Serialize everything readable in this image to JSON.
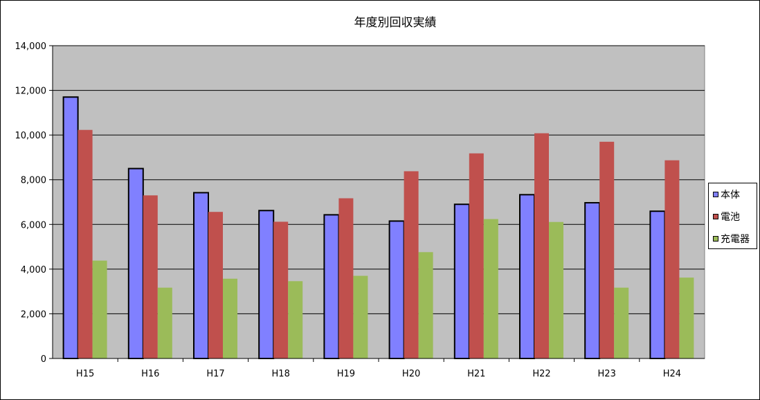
{
  "chart_data": {
    "type": "bar",
    "title": "年度別回収実績",
    "xlabel": "",
    "ylabel": "",
    "categories": [
      "H15",
      "H16",
      "H17",
      "H18",
      "H19",
      "H20",
      "H21",
      "H22",
      "H23",
      "H24"
    ],
    "series": [
      {
        "name": "本体",
        "color": "#8080FF",
        "values": [
          11700,
          8500,
          7420,
          6620,
          6430,
          6150,
          6900,
          7330,
          6970,
          6590
        ]
      },
      {
        "name": "電池",
        "color": "#C0504D",
        "values": [
          10230,
          7300,
          6560,
          6120,
          7170,
          8380,
          9180,
          10080,
          9700,
          8870
        ]
      },
      {
        "name": "充電器",
        "color": "#9BBB59",
        "values": [
          4380,
          3170,
          3570,
          3460,
          3700,
          4760,
          6240,
          6110,
          3170,
          3620
        ]
      }
    ],
    "ylim": [
      0,
      14000
    ],
    "yticks": [
      "0",
      "2,000",
      "4,000",
      "6,000",
      "8,000",
      "10,000",
      "12,000",
      "14,000"
    ],
    "grid": true,
    "plot_background": "#C0C0C0",
    "legend_position": "right"
  }
}
